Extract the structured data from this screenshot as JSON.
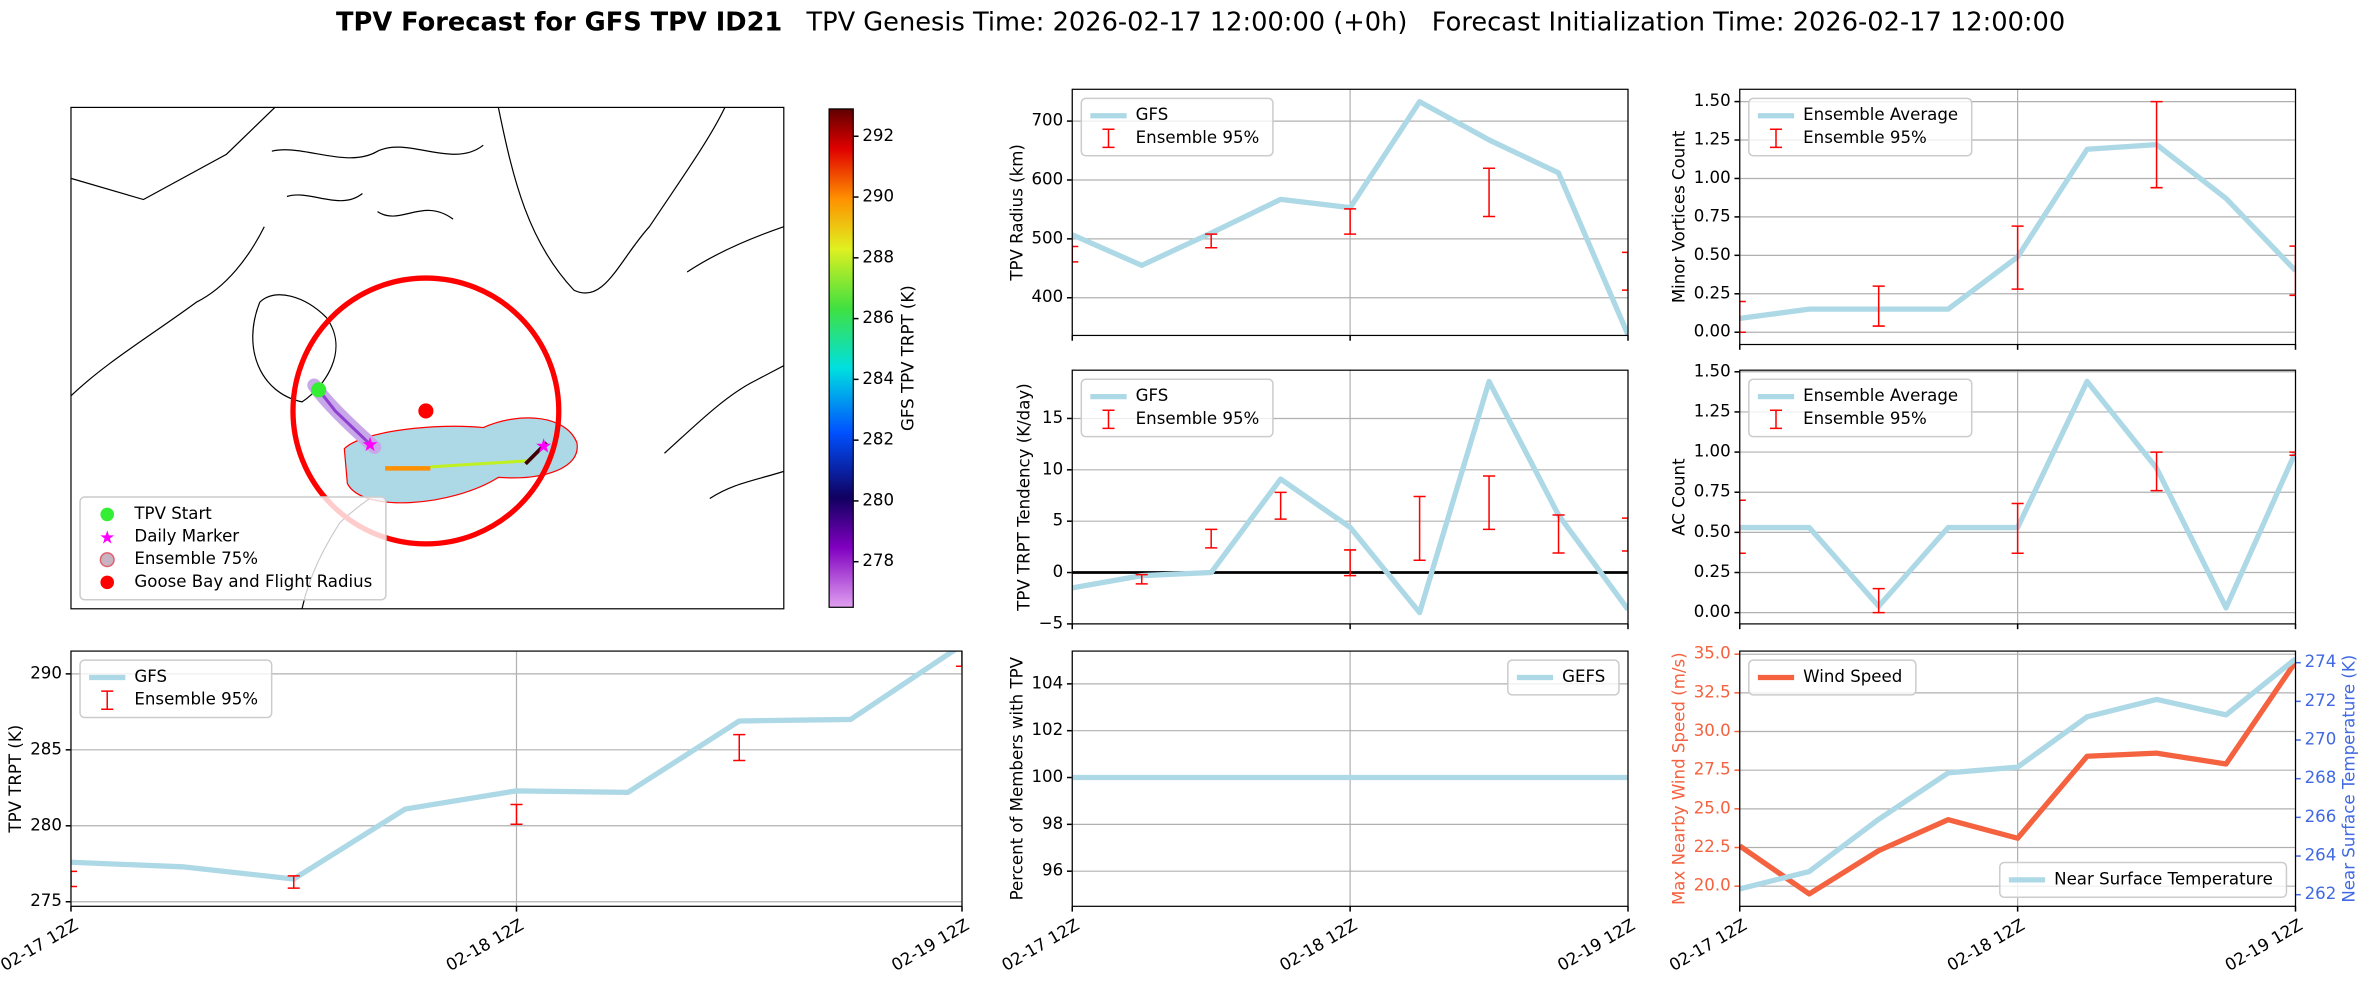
{
  "title": "TPV Forecast for GFS TPV ID21",
  "subtitle": "TPV Genesis Time: 2026-02-17 12:00:00 (+0h)   Forecast Initialization Time: 2026-02-17 12:00:00",
  "chart_data": [
    {
      "type": "map",
      "legend": [
        {
          "label": "TPV Start",
          "color": "#33ee33",
          "marker": "circle"
        },
        {
          "label": "Daily Marker",
          "color": "#ff00ff",
          "marker": "star"
        },
        {
          "label": "Ensemble 75%",
          "color": "#c8b4c0",
          "marker": "circle"
        },
        {
          "label": "Goose Bay and Flight Radius",
          "color": "#ff0000",
          "marker": "circle"
        }
      ],
      "colorbar": {
        "label": "GFS TPV TRPT (K)",
        "lim": [
          276.5,
          292.9
        ],
        "ticks": [
          278,
          280,
          282,
          284,
          286,
          288,
          290,
          292
        ]
      }
    },
    {
      "type": "line",
      "ylabel": "TPV Radius (km)",
      "x": [
        0,
        6,
        12,
        18,
        24,
        30,
        36,
        42,
        48
      ],
      "xlim": [
        0,
        48
      ],
      "xticks": [
        0,
        24,
        48
      ],
      "ylim": [
        336,
        754
      ],
      "yticks": [
        400,
        500,
        600,
        700
      ],
      "grid": true,
      "legend": "upper left",
      "series": [
        {
          "name": "GFS",
          "color": "#add8e6",
          "values": [
            507,
            455,
            510,
            567,
            553,
            733,
            668,
            612,
            337
          ]
        }
      ],
      "errorbars": {
        "name": "Ensemble 95%",
        "color": "#ff0000",
        "x": [
          0,
          12,
          24,
          36,
          48
        ],
        "lower": [
          461,
          485,
          508,
          538,
          413
        ],
        "upper": [
          487,
          508,
          551,
          620,
          477
        ]
      }
    },
    {
      "type": "line",
      "ylabel": "TPV TRPT Tendency (K/day)",
      "x": [
        0,
        6,
        12,
        18,
        24,
        30,
        36,
        42,
        48
      ],
      "xlim": [
        0,
        48
      ],
      "xticks": [
        0,
        24,
        48
      ],
      "ylim": [
        -5,
        19.7
      ],
      "yticks": [
        {
          "value": -5,
          "label": "−5"
        },
        0,
        5,
        10,
        15
      ],
      "grid": true,
      "legend": "upper left",
      "hline": 0,
      "series": [
        {
          "name": "GFS",
          "color": "#add8e6",
          "values": [
            -1.5,
            -0.3,
            0,
            9.1,
            4.4,
            -3.9,
            18.6,
            5.6,
            -3.6
          ]
        }
      ],
      "errorbars": {
        "name": "Ensemble 95%",
        "color": "#ff0000",
        "x": [
          6,
          12,
          18,
          24,
          30,
          36,
          42,
          48
        ],
        "lower": [
          -1.1,
          2.4,
          5.2,
          -0.3,
          1.2,
          4.2,
          1.9,
          2.1
        ],
        "upper": [
          -0.2,
          4.2,
          7.8,
          2.2,
          7.4,
          9.4,
          5.6,
          5.3
        ]
      }
    },
    {
      "type": "line",
      "ylabel": "Percent of Members with TPV",
      "x": [
        0,
        6,
        12,
        18,
        24,
        30,
        36,
        42,
        48
      ],
      "xlim": [
        0,
        48
      ],
      "xticks": [
        {
          "value": 0,
          "label": "02-17 12Z"
        },
        {
          "value": 24,
          "label": "02-18 12Z"
        },
        {
          "value": 48,
          "label": "02-19 12Z"
        }
      ],
      "ylim": [
        94.5,
        105.4
      ],
      "yticks": [
        96,
        98,
        100,
        102,
        104
      ],
      "grid": true,
      "legend": "upper right",
      "series": [
        {
          "name": "GEFS",
          "color": "#add8e6",
          "values": [
            100,
            100,
            100,
            100,
            100,
            100,
            100,
            100,
            100
          ]
        }
      ]
    },
    {
      "type": "line",
      "ylabel": "Minor Vortices Count",
      "x": [
        0,
        6,
        12,
        18,
        24,
        30,
        36,
        42,
        48
      ],
      "xlim": [
        0,
        48
      ],
      "xticks": [
        0,
        24,
        48
      ],
      "ylim": [
        -0.08,
        1.58
      ],
      "yticks": [
        {
          "value": 0,
          "label": "0.00"
        },
        {
          "value": 0.25,
          "label": "0.25"
        },
        {
          "value": 0.5,
          "label": "0.50"
        },
        {
          "value": 0.75,
          "label": "0.75"
        },
        {
          "value": 1,
          "label": "1.00"
        },
        {
          "value": 1.25,
          "label": "1.25"
        },
        {
          "value": 1.5,
          "label": "1.50"
        }
      ],
      "grid": true,
      "legend": "upper left",
      "series": [
        {
          "name": "Ensemble Average",
          "color": "#add8e6",
          "values": [
            0.09,
            0.15,
            0.15,
            0.15,
            0.49,
            1.19,
            1.22,
            0.87,
            0.4
          ]
        }
      ],
      "errorbars": {
        "name": "Ensemble 95%",
        "color": "#ff0000",
        "x": [
          0,
          12,
          24,
          36,
          48
        ],
        "lower": [
          0,
          0.04,
          0.28,
          0.94,
          0.24
        ],
        "upper": [
          0.2,
          0.3,
          0.69,
          1.5,
          0.56
        ]
      }
    },
    {
      "type": "line",
      "ylabel": "AC Count",
      "x": [
        0,
        6,
        12,
        18,
        24,
        30,
        36,
        42,
        48
      ],
      "xlim": [
        0,
        48
      ],
      "xticks": [
        0,
        24,
        48
      ],
      "ylim": [
        -0.07,
        1.51
      ],
      "yticks": [
        {
          "value": 0,
          "label": "0.00"
        },
        {
          "value": 0.25,
          "label": "0.25"
        },
        {
          "value": 0.5,
          "label": "0.50"
        },
        {
          "value": 0.75,
          "label": "0.75"
        },
        {
          "value": 1,
          "label": "1.00"
        },
        {
          "value": 1.25,
          "label": "1.25"
        },
        {
          "value": 1.5,
          "label": "1.50"
        }
      ],
      "grid": true,
      "legend": "upper left",
      "series": [
        {
          "name": "Ensemble Average",
          "color": "#add8e6",
          "values": [
            0.53,
            0.53,
            0.04,
            0.53,
            0.53,
            1.44,
            0.9,
            0.03,
            1.0
          ]
        }
      ],
      "errorbars": {
        "name": "Ensemble 95%",
        "color": "#ff0000",
        "x": [
          0,
          12,
          24,
          36,
          48
        ],
        "lower": [
          0.37,
          0,
          0.37,
          0.76,
          0.98
        ],
        "upper": [
          0.7,
          0.15,
          0.68,
          1.0,
          1.0
        ]
      }
    },
    {
      "type": "line",
      "ylabel": "TPV TRPT (K)",
      "x": [
        0,
        6,
        12,
        18,
        24,
        30,
        36,
        42,
        48
      ],
      "xlim": [
        0,
        48
      ],
      "xticks": [
        {
          "value": 0,
          "label": "02-17 12Z"
        },
        {
          "value": 24,
          "label": "02-18 12Z"
        },
        {
          "value": 48,
          "label": "02-19 12Z"
        }
      ],
      "ylim": [
        274.7,
        291.5
      ],
      "yticks": [
        275,
        280,
        285,
        290
      ],
      "grid": true,
      "legend": "upper left",
      "series": [
        {
          "name": "GFS",
          "color": "#add8e6",
          "values": [
            277.6,
            277.3,
            276.5,
            281.1,
            282.3,
            282.2,
            286.9,
            287.0,
            291.9
          ]
        }
      ],
      "errorbars": {
        "name": "Ensemble 95%",
        "color": "#ff0000",
        "x": [
          0,
          12,
          24,
          36,
          48
        ],
        "lower": [
          276.0,
          275.9,
          280.1,
          284.3,
          290.5
        ],
        "upper": [
          277.0,
          276.7,
          281.4,
          286.0,
          292.0
        ]
      }
    },
    {
      "type": "line",
      "ylabel": "Max Nearby Wind Speed (m/s)",
      "y2label": "Near Surface Temperature (K)",
      "ylabel_color": "#f4623f",
      "y2label_color": "#4169e1",
      "x": [
        0,
        6,
        12,
        18,
        24,
        30,
        36,
        42,
        48
      ],
      "xlim": [
        0,
        48
      ],
      "xticks": [
        {
          "value": 0,
          "label": "02-17 12Z"
        },
        {
          "value": 24,
          "label": "02-18 12Z"
        },
        {
          "value": 48,
          "label": "02-19 12Z"
        }
      ],
      "ylim": [
        18.7,
        35.2
      ],
      "yticks": [
        {
          "value": 20,
          "label": "20.0"
        },
        {
          "value": 22.5,
          "label": "22.5"
        },
        {
          "value": 25,
          "label": "25.0"
        },
        {
          "value": 27.5,
          "label": "27.5"
        },
        {
          "value": 30,
          "label": "30.0"
        },
        {
          "value": 32.5,
          "label": "32.5"
        },
        {
          "value": 35,
          "label": "35.0"
        }
      ],
      "y2lim": [
        261.4,
        274.6
      ],
      "y2ticks": [
        262,
        264,
        266,
        268,
        270,
        272,
        274
      ],
      "grid": true,
      "legend": "upper left",
      "y2legend": "lower right",
      "series": [
        {
          "name": "Wind Speed",
          "color": "#f4623f",
          "values": [
            22.6,
            19.5,
            22.3,
            24.3,
            23.1,
            28.4,
            28.6,
            27.9,
            34.5
          ]
        },
        {
          "name": "Near Surface Temperature",
          "color": "#add8e6",
          "axis": "y2",
          "values": [
            262.3,
            263.2,
            265.9,
            268.3,
            268.6,
            271.2,
            272.1,
            271.3,
            274.2
          ]
        }
      ]
    }
  ]
}
